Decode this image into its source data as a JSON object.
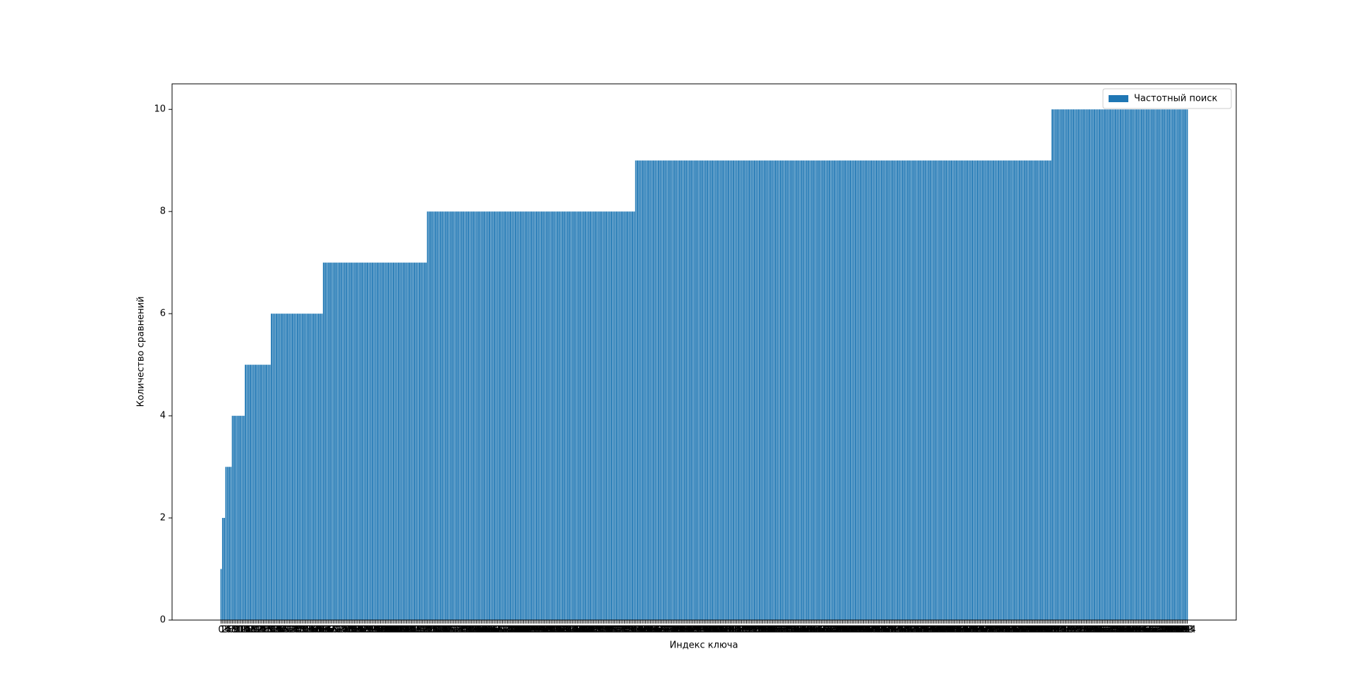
{
  "chart_data": {
    "type": "bar",
    "x_label": "Индекс ключа",
    "y_label": "Количество сравнений",
    "categories": [
      0,
      1,
      2,
      3,
      4,
      5,
      6,
      7,
      8,
      9,
      10,
      11,
      12,
      13,
      14,
      15,
      16,
      17,
      18,
      19,
      20,
      21,
      22,
      23,
      24,
      25,
      26,
      27,
      28,
      29,
      30,
      31,
      32,
      33,
      34,
      35,
      36,
      37,
      38,
      39,
      40,
      41,
      42,
      43,
      44,
      45,
      46,
      47,
      48,
      49,
      50,
      51,
      52,
      53,
      54,
      55,
      56,
      57,
      58,
      59,
      60,
      61,
      62,
      63,
      64,
      65,
      66,
      67,
      68,
      69,
      70,
      71,
      72,
      73,
      74,
      75,
      76,
      77,
      78,
      79,
      80,
      81,
      82,
      83,
      84,
      85,
      86,
      87,
      88,
      89,
      90,
      91,
      92,
      93,
      94,
      95,
      96,
      97,
      98,
      99,
      100,
      101,
      102,
      103,
      104,
      105,
      106,
      107,
      108,
      109,
      110,
      111,
      112,
      113,
      114,
      115,
      116,
      117,
      118,
      119,
      120,
      121,
      122,
      123,
      124,
      125,
      126,
      127,
      128,
      129,
      130,
      131,
      132,
      133,
      134,
      135,
      136,
      137,
      138,
      139,
      140,
      141,
      142,
      143,
      144,
      145,
      146,
      147,
      148,
      149,
      150,
      151,
      152,
      153,
      154,
      155,
      156,
      157,
      158,
      159,
      160,
      161,
      162,
      163,
      164,
      165,
      166,
      167,
      168,
      169,
      170,
      171,
      172,
      173,
      174,
      175,
      176,
      177,
      178,
      179,
      180,
      181,
      182,
      183,
      184,
      185,
      186,
      187,
      188,
      189,
      190,
      191,
      192,
      193,
      194,
      195,
      196,
      197,
      198,
      199,
      200,
      201,
      202,
      203,
      204,
      205,
      206,
      207,
      208,
      209,
      210,
      211,
      212,
      213,
      214,
      215,
      216,
      217,
      218,
      219,
      220,
      221,
      222,
      223,
      224,
      225,
      226,
      227,
      228,
      229,
      230,
      231,
      232,
      233,
      234,
      235,
      236,
      237,
      238,
      239,
      240,
      241,
      242,
      243,
      244,
      245,
      246,
      247,
      248,
      249,
      250,
      251,
      252,
      253,
      254,
      255,
      256,
      257,
      258,
      259,
      260,
      261,
      262,
      263,
      264,
      265,
      266,
      267,
      268,
      269,
      270,
      271,
      272,
      273,
      274,
      275,
      276,
      277,
      278,
      279,
      280,
      281,
      282,
      283,
      284,
      285,
      286,
      287,
      288,
      289,
      290,
      291,
      292,
      293,
      294,
      295,
      296,
      297,
      298,
      299,
      300,
      301,
      302,
      303,
      304,
      305,
      306,
      307,
      308,
      309,
      310,
      311,
      312,
      313,
      314,
      315,
      316,
      317,
      318,
      319,
      320,
      321,
      322,
      323,
      324,
      325,
      326,
      327,
      328,
      329,
      330,
      331,
      332,
      333,
      334,
      335,
      336,
      337,
      338,
      339,
      340,
      341,
      342,
      343,
      344,
      345,
      346,
      347,
      348,
      349,
      350,
      351,
      352,
      353,
      354,
      355,
      356,
      357,
      358,
      359,
      360,
      361,
      362,
      363,
      364,
      365,
      366,
      367,
      368,
      369,
      370,
      371,
      372,
      373,
      374,
      375,
      376,
      377,
      378,
      379,
      380,
      381,
      382,
      383,
      384,
      385,
      386,
      387,
      388,
      389,
      390,
      391,
      392,
      393,
      394,
      395,
      396,
      397,
      398,
      399,
      400,
      401,
      402,
      403,
      404,
      405,
      406,
      407,
      408,
      409,
      410,
      411,
      412,
      413,
      414,
      415,
      416,
      417,
      418,
      419,
      420,
      421,
      422,
      423,
      424,
      425,
      426,
      427,
      428,
      429,
      430,
      431,
      432,
      433,
      434,
      435,
      436,
      437,
      438,
      439,
      440,
      441,
      442,
      443,
      444,
      445,
      446,
      447,
      448,
      449,
      450,
      451,
      452,
      453,
      454,
      455,
      456,
      457,
      458,
      459,
      460,
      461,
      462,
      463,
      464,
      465,
      466,
      467,
      468,
      469,
      470,
      471,
      472,
      473,
      474,
      475,
      476,
      477,
      478,
      479,
      480,
      481,
      482,
      483,
      484,
      485,
      486,
      487,
      488,
      489,
      490,
      491,
      492,
      493,
      494,
      495,
      496,
      497,
      498,
      499,
      500,
      501,
      502,
      503,
      504,
      505,
      506,
      507,
      508,
      509,
      510,
      511,
      512,
      513,
      514,
      515,
      516,
      517,
      518,
      519,
      520,
      521,
      522,
      523,
      524,
      525,
      526,
      527,
      528,
      529,
      530,
      531,
      532,
      533,
      534,
      535,
      536,
      537,
      538,
      539,
      540,
      541,
      542,
      543,
      544,
      545,
      546,
      547,
      548,
      549,
      550,
      551,
      552,
      553,
      554,
      555,
      556,
      557,
      558,
      559,
      560,
      561,
      562,
      563,
      564,
      565,
      566,
      567,
      568,
      569,
      570,
      571,
      572,
      573,
      574,
      575,
      576,
      577,
      578,
      579,
      580,
      581,
      582,
      583,
      584,
      585,
      586,
      587,
      588,
      589,
      590,
      591,
      592,
      593,
      594
    ],
    "series": [
      {
        "name": "Частотный поиск",
        "color": "#1f77b4",
        "values": [
          1,
          2,
          2,
          3,
          3,
          3,
          3,
          4,
          4,
          4,
          4,
          4,
          4,
          4,
          4,
          5,
          5,
          5,
          5,
          5,
          5,
          5,
          5,
          5,
          5,
          5,
          5,
          5,
          5,
          5,
          5,
          6,
          6,
          6,
          6,
          6,
          6,
          6,
          6,
          6,
          6,
          6,
          6,
          6,
          6,
          6,
          6,
          6,
          6,
          6,
          6,
          6,
          6,
          6,
          6,
          6,
          6,
          6,
          6,
          6,
          6,
          6,
          6,
          7,
          7,
          7,
          7,
          7,
          7,
          7,
          7,
          7,
          7,
          7,
          7,
          7,
          7,
          7,
          7,
          7,
          7,
          7,
          7,
          7,
          7,
          7,
          7,
          7,
          7,
          7,
          7,
          7,
          7,
          7,
          7,
          7,
          7,
          7,
          7,
          7,
          7,
          7,
          7,
          7,
          7,
          7,
          7,
          7,
          7,
          7,
          7,
          7,
          7,
          7,
          7,
          7,
          7,
          7,
          7,
          7,
          7,
          7,
          7,
          7,
          7,
          7,
          7,
          8,
          8,
          8,
          8,
          8,
          8,
          8,
          8,
          8,
          8,
          8,
          8,
          8,
          8,
          8,
          8,
          8,
          8,
          8,
          8,
          8,
          8,
          8,
          8,
          8,
          8,
          8,
          8,
          8,
          8,
          8,
          8,
          8,
          8,
          8,
          8,
          8,
          8,
          8,
          8,
          8,
          8,
          8,
          8,
          8,
          8,
          8,
          8,
          8,
          8,
          8,
          8,
          8,
          8,
          8,
          8,
          8,
          8,
          8,
          8,
          8,
          8,
          8,
          8,
          8,
          8,
          8,
          8,
          8,
          8,
          8,
          8,
          8,
          8,
          8,
          8,
          8,
          8,
          8,
          8,
          8,
          8,
          8,
          8,
          8,
          8,
          8,
          8,
          8,
          8,
          8,
          8,
          8,
          8,
          8,
          8,
          8,
          8,
          8,
          8,
          8,
          8,
          8,
          8,
          8,
          8,
          8,
          8,
          8,
          8,
          8,
          8,
          8,
          8,
          8,
          8,
          8,
          8,
          8,
          8,
          8,
          8,
          8,
          8,
          8,
          8,
          8,
          8,
          9,
          9,
          9,
          9,
          9,
          9,
          9,
          9,
          9,
          9,
          9,
          9,
          9,
          9,
          9,
          9,
          9,
          9,
          9,
          9,
          9,
          9,
          9,
          9,
          9,
          9,
          9,
          9,
          9,
          9,
          9,
          9,
          9,
          9,
          9,
          9,
          9,
          9,
          9,
          9,
          9,
          9,
          9,
          9,
          9,
          9,
          9,
          9,
          9,
          9,
          9,
          9,
          9,
          9,
          9,
          9,
          9,
          9,
          9,
          9,
          9,
          9,
          9,
          9,
          9,
          9,
          9,
          9,
          9,
          9,
          9,
          9,
          9,
          9,
          9,
          9,
          9,
          9,
          9,
          9,
          9,
          9,
          9,
          9,
          9,
          9,
          9,
          9,
          9,
          9,
          9,
          9,
          9,
          9,
          9,
          9,
          9,
          9,
          9,
          9,
          9,
          9,
          9,
          9,
          9,
          9,
          9,
          9,
          9,
          9,
          9,
          9,
          9,
          9,
          9,
          9,
          9,
          9,
          9,
          9,
          9,
          9,
          9,
          9,
          9,
          9,
          9,
          9,
          9,
          9,
          9,
          9,
          9,
          9,
          9,
          9,
          9,
          9,
          9,
          9,
          9,
          9,
          9,
          9,
          9,
          9,
          9,
          9,
          9,
          9,
          9,
          9,
          9,
          9,
          9,
          9,
          9,
          9,
          9,
          9,
          9,
          9,
          9,
          9,
          9,
          9,
          9,
          9,
          9,
          9,
          9,
          9,
          9,
          9,
          9,
          9,
          9,
          9,
          9,
          9,
          9,
          9,
          9,
          9,
          9,
          9,
          9,
          9,
          9,
          9,
          9,
          9,
          9,
          9,
          9,
          9,
          9,
          9,
          9,
          9,
          9,
          9,
          9,
          9,
          9,
          9,
          9,
          9,
          9,
          9,
          9,
          9,
          9,
          9,
          9,
          9,
          9,
          9,
          9,
          9,
          9,
          9,
          9,
          9,
          9,
          9,
          9,
          9,
          9,
          9,
          9,
          9,
          9,
          9,
          9,
          9,
          9,
          9,
          9,
          9,
          9,
          9,
          9,
          9,
          9,
          9,
          9,
          9,
          9,
          9,
          9,
          9,
          9,
          9,
          9,
          9,
          10,
          10,
          10,
          10,
          10,
          10,
          10,
          10,
          10,
          10,
          10,
          10,
          10,
          10,
          10,
          10,
          10,
          10,
          10,
          10,
          10,
          10,
          10,
          10,
          10,
          10,
          10,
          10,
          10,
          10,
          10,
          10,
          10,
          10,
          10,
          10,
          10,
          10,
          10,
          10,
          10,
          10,
          10,
          10,
          10,
          10,
          10,
          10,
          10,
          10,
          10,
          10,
          10,
          10,
          10,
          10,
          10,
          10,
          10,
          10,
          10,
          10,
          10,
          10,
          10,
          10,
          10,
          10,
          10,
          10,
          10,
          10,
          10,
          10,
          10,
          10,
          10,
          10,
          10,
          10,
          10,
          10,
          10,
          10
        ]
      }
    ],
    "ylim": [
      0,
      10.5
    ],
    "yticks": [
      0,
      2,
      4,
      6,
      8,
      10
    ],
    "legend": "upper right"
  }
}
